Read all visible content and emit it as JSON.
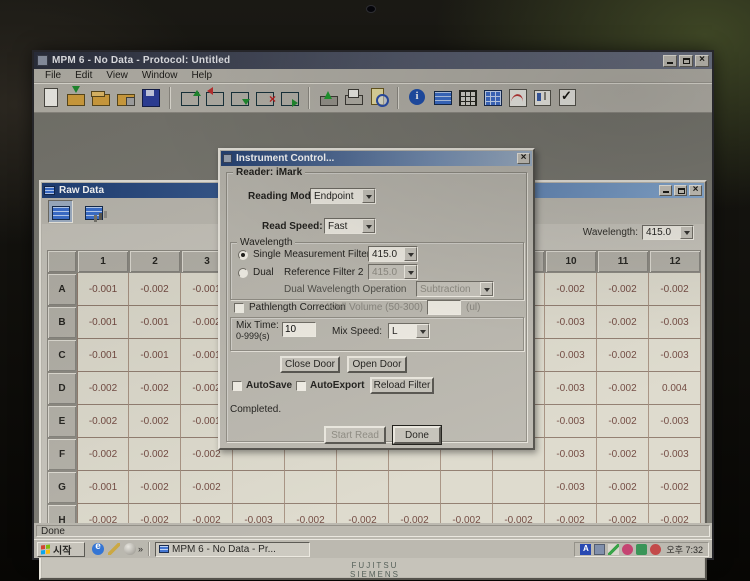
{
  "colors": {
    "cellbg": "#dcd9cb",
    "celltext": "#6e453c",
    "chrome": "#b8b5ac",
    "titlebar_blue": "#1d3d74",
    "titlebar_dark": "#2c303e"
  },
  "monitor": {
    "brand_line1": "FUJITSU",
    "brand_line2": "SIEMENS"
  },
  "app": {
    "title": "MPM 6 - No Data - Protocol: Untitled",
    "menus": [
      "File",
      "Edit",
      "View",
      "Window",
      "Help"
    ],
    "toolbar_icons": [
      "new-file-icon",
      "import-data-icon",
      "open-folder-icon",
      "open-protocol-icon",
      "save-icon",
      "plate-add-icon",
      "plate-in-icon",
      "plate-copy-icon",
      "plate-remove-icon",
      "plate-export-icon",
      "reader-eject-icon",
      "print-icon",
      "preview-icon",
      "info-icon",
      "raw-plate-icon",
      "grid-view-icon",
      "matrix-view-icon",
      "standard-curve-icon",
      "report-icon",
      "validate-icon"
    ],
    "status": "Done"
  },
  "raw_window": {
    "title": "Raw Data",
    "wavelength_label": "Wavelength:",
    "wavelength_value": "415.0",
    "grid": {
      "col_headers": [
        "1",
        "2",
        "3",
        "4",
        "5",
        "6",
        "7",
        "8",
        "9",
        "10",
        "11",
        "12"
      ],
      "rows": [
        {
          "label": "A",
          "cells": [
            "-0.001",
            "-0.002",
            "-0.001",
            null,
            null,
            null,
            null,
            null,
            null,
            "-0.002",
            "-0.002",
            "-0.002"
          ]
        },
        {
          "label": "B",
          "cells": [
            "-0.001",
            "-0.001",
            "-0.002",
            null,
            null,
            null,
            null,
            null,
            null,
            "-0.003",
            "-0.002",
            "-0.003"
          ]
        },
        {
          "label": "C",
          "cells": [
            "-0.001",
            "-0.001",
            "-0.001",
            null,
            null,
            null,
            null,
            null,
            null,
            "-0.003",
            "-0.002",
            "-0.003"
          ]
        },
        {
          "label": "D",
          "cells": [
            "-0.002",
            "-0.002",
            "-0.002",
            null,
            null,
            null,
            null,
            null,
            null,
            "-0.003",
            "-0.002",
            "0.004"
          ]
        },
        {
          "label": "E",
          "cells": [
            "-0.002",
            "-0.002",
            "-0.001",
            null,
            null,
            null,
            null,
            null,
            null,
            "-0.003",
            "-0.002",
            "-0.003"
          ]
        },
        {
          "label": "F",
          "cells": [
            "-0.002",
            "-0.002",
            "-0.002",
            null,
            null,
            null,
            null,
            null,
            null,
            "-0.003",
            "-0.002",
            "-0.003"
          ]
        },
        {
          "label": "G",
          "cells": [
            "-0.001",
            "-0.002",
            "-0.002",
            null,
            null,
            null,
            null,
            null,
            null,
            "-0.003",
            "-0.002",
            "-0.002"
          ]
        },
        {
          "label": "H",
          "cells": [
            "-0.002",
            "-0.002",
            "-0.002",
            "-0.003",
            "-0.002",
            "-0.002",
            "-0.002",
            "-0.002",
            "-0.002",
            "-0.002",
            "-0.002",
            "-0.002"
          ]
        }
      ]
    }
  },
  "dialog": {
    "title": "Instrument Control...",
    "reader_group": "Reader: iMark",
    "reading_mode_label": "Reading Mode:",
    "reading_mode_value": "Endpoint",
    "read_speed_label": "Read Speed:",
    "read_speed_value": "Fast",
    "wavelength_group": "Wavelength",
    "single_label": "Single",
    "measurement_filter_label": "Measurement Filter",
    "measurement_filter_value": "415.0",
    "dual_label": "Dual",
    "reference_filter_label": "Reference Filter 2",
    "reference_filter_value": "415.0",
    "dual_op_label": "Dual Wavelength Operation",
    "dual_op_value": "Subtraction",
    "pathlength_label": "Pathlength Correction",
    "well_volume_label": "Well Volume (50-300)",
    "well_volume_value": "",
    "well_volume_unit": "(ul)",
    "mix_time_label": "Mix Time:",
    "mix_time_range": "0-999(s)",
    "mix_time_value": "10",
    "mix_speed_label": "Mix Speed:",
    "mix_speed_value": "L",
    "close_door": "Close Door",
    "open_door": "Open Door",
    "autosave": "AutoSave",
    "autoexport": "AutoExport",
    "reload_filter": "Reload Filter",
    "status": "Completed.",
    "start_read": "Start Read",
    "done": "Done"
  },
  "taskbar": {
    "start_label": "시작",
    "quick_launch_icons": [
      "browser-icon",
      "pen-icon",
      "ball-icon"
    ],
    "overflow": "»",
    "task_button": "MPM 6 - No Data - Pr...",
    "tray_icons": [
      "ime-icon",
      "display-icon",
      "pen2-icon",
      "update-icon",
      "security-icon",
      "alarm-icon"
    ],
    "clock": "오후 7:32"
  }
}
